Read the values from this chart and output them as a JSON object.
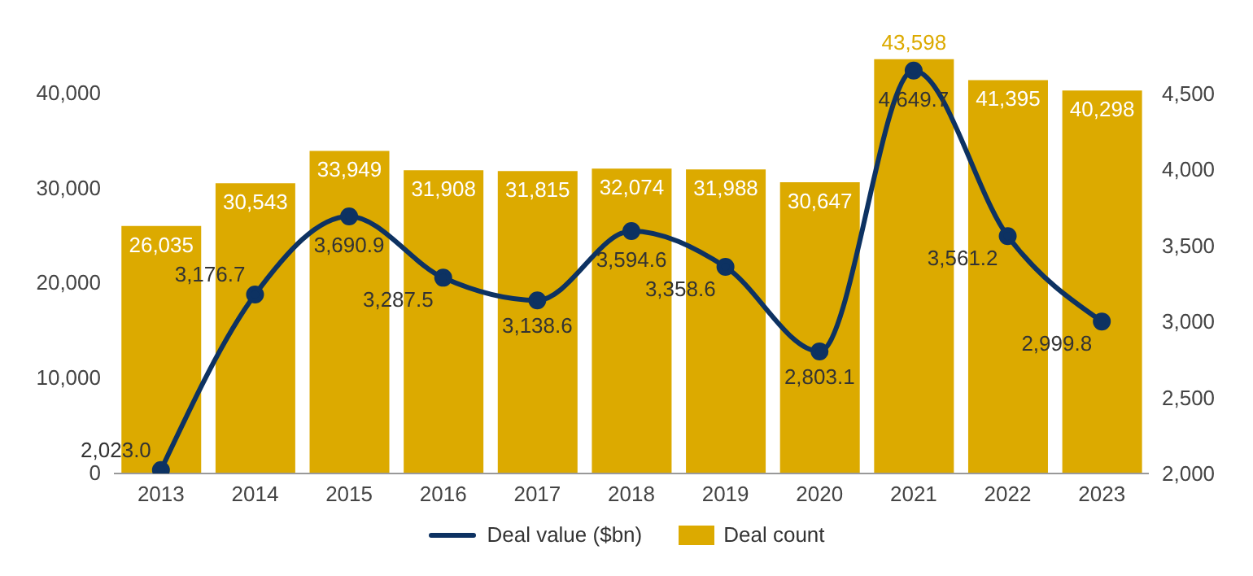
{
  "chart_data": {
    "type": "bar",
    "categories": [
      "2013",
      "2014",
      "2015",
      "2016",
      "2017",
      "2018",
      "2019",
      "2020",
      "2021",
      "2022",
      "2023"
    ],
    "series": [
      {
        "name": "Deal value ($bn)",
        "type": "line",
        "axis": "y2",
        "color": "#0d3262",
        "values": [
          2023.0,
          3176.7,
          3690.9,
          3287.5,
          3138.6,
          3594.6,
          3358.6,
          2803.1,
          4649.7,
          3561.2,
          2999.8
        ],
        "value_labels": [
          "2,023.0",
          "3,176.7",
          "3,690.9",
          "3,287.5",
          "3,138.6",
          "3,594.6",
          "3,358.6",
          "2,803.1",
          "4,649.7",
          "3,561.2",
          "2,999.8"
        ]
      },
      {
        "name": "Deal count",
        "color": "#dcaa00",
        "values": [
          26035,
          30543,
          33949,
          31908,
          31815,
          32074,
          31988,
          30647,
          43598,
          41395,
          40298
        ],
        "value_labels": [
          "26,035",
          "30,543",
          "33,949",
          "31,908",
          "31,815",
          "32,074",
          "31,988",
          "30,647",
          "43,598",
          "41,395",
          "40,298"
        ]
      }
    ],
    "ylim": [
      0,
      44000
    ],
    "yticks": [
      0,
      {
        "value": 10000,
        "label": "10,000"
      },
      {
        "value": 20000,
        "label": "20,000"
      },
      {
        "value": 30000,
        "label": "30,000"
      },
      {
        "value": 40000,
        "label": "40,000"
      }
    ],
    "y2lim": [
      2000,
      4750
    ],
    "y2ticks": [
      {
        "value": 2000,
        "label": "2,000"
      },
      {
        "value": 2500,
        "label": "2,500"
      },
      {
        "value": 3000,
        "label": "3,000"
      },
      {
        "value": 3500,
        "label": "3,500"
      },
      {
        "value": 4000,
        "label": "4,000"
      },
      {
        "value": 4500,
        "label": "4,500"
      }
    ],
    "marker": "circle",
    "legend": "bottom",
    "grid": false
  }
}
